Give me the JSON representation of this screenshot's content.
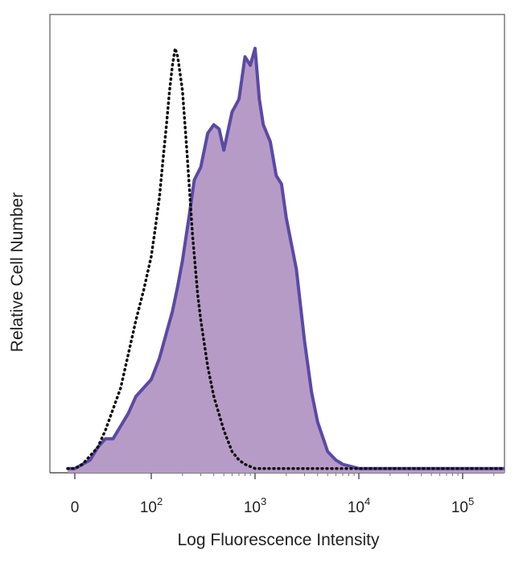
{
  "chart_data": {
    "type": "area",
    "title": "",
    "xlabel": "Log Fluorescence Intensity",
    "ylabel": "Relative Cell Number",
    "x_scale": "biexponential",
    "xlim": [
      -30,
      400000
    ],
    "ylim": [
      0,
      100
    ],
    "x_ticks": [
      {
        "value": 0,
        "base": "0",
        "exp": ""
      },
      {
        "value": 100,
        "base": "10",
        "exp": "2"
      },
      {
        "value": 1000,
        "base": "10",
        "exp": "3"
      },
      {
        "value": 10000,
        "base": "10",
        "exp": "4"
      },
      {
        "value": 100000,
        "base": "10",
        "exp": "5"
      }
    ],
    "grid": false,
    "legend": "none",
    "series": [
      {
        "style": "filled",
        "fill_color": "#b79bc7",
        "line_color": "#5a4aa6",
        "x": [
          -30,
          0,
          10,
          20,
          30,
          40,
          50,
          60,
          70,
          80,
          90,
          100,
          120,
          140,
          160,
          180,
          200,
          230,
          260,
          300,
          350,
          400,
          450,
          500,
          600,
          700,
          800,
          900,
          1000,
          1100,
          1200,
          1400,
          1600,
          1800,
          2000,
          2500,
          3000,
          3500,
          4000,
          5000,
          6000,
          7000,
          10000,
          30000,
          100000,
          400000
        ],
        "y": [
          1,
          1,
          2,
          3,
          6,
          8,
          8,
          11,
          14,
          18,
          20,
          22,
          27,
          33,
          38,
          44,
          50,
          60,
          69,
          72,
          80,
          82,
          81,
          76,
          85,
          88,
          98,
          96,
          100,
          88,
          82,
          78,
          70,
          68,
          60,
          48,
          31,
          19,
          12,
          5,
          3,
          2,
          1,
          1,
          1,
          1
        ]
      },
      {
        "style": "dotted",
        "line_color": "#111111",
        "x": [
          -30,
          0,
          10,
          20,
          30,
          40,
          50,
          60,
          70,
          80,
          90,
          100,
          110,
          120,
          130,
          140,
          150,
          160,
          170,
          180,
          200,
          220,
          250,
          280,
          300,
          350,
          400,
          500,
          600,
          700,
          800,
          1000,
          2000,
          10000,
          100000,
          400000
        ],
        "y": [
          1,
          1,
          2,
          4,
          6,
          10,
          15,
          20,
          28,
          36,
          43,
          51,
          58,
          65,
          74,
          82,
          90,
          96,
          100,
          98,
          90,
          76,
          56,
          42,
          36,
          25,
          18,
          10,
          5,
          3,
          2,
          1,
          1,
          1,
          1,
          1
        ]
      }
    ]
  }
}
